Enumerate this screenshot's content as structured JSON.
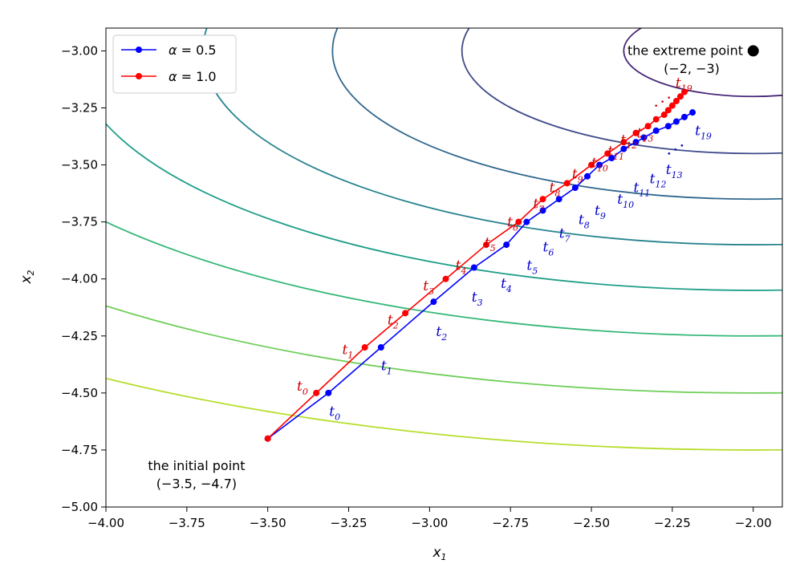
{
  "chart_data": {
    "type": "line",
    "title": "",
    "xlabel": "x",
    "xlabel_sub": "1",
    "ylabel": "x",
    "ylabel_sub": "2",
    "xlim": [
      -4.0,
      -1.91
    ],
    "ylim": [
      -5.0,
      -2.9
    ],
    "xticks": [
      -4.0,
      -3.75,
      -3.5,
      -3.25,
      -3.0,
      -2.75,
      -2.5,
      -2.25,
      -2.0
    ],
    "xtick_labels": [
      "−4.00",
      "−3.75",
      "−3.50",
      "−3.25",
      "−3.00",
      "−2.75",
      "−2.50",
      "−2.25",
      "−2.00"
    ],
    "yticks": [
      -3.0,
      -3.25,
      -3.5,
      -3.75,
      -4.0,
      -4.25,
      -4.5,
      -4.75,
      -5.0
    ],
    "ytick_labels": [
      "−3.00",
      "−3.25",
      "−3.50",
      "−3.75",
      "−4.00",
      "−4.25",
      "−4.50",
      "−4.75",
      "−5.00"
    ],
    "grid": false,
    "legend_position": "top-left",
    "contours": {
      "center": [
        -2.0,
        -3.0
      ],
      "x_radii": [
        0.4,
        0.9,
        1.3,
        1.7,
        2.1,
        2.5,
        3.0,
        3.5
      ],
      "ry_ratio": 0.5,
      "colors": [
        "#482878",
        "#3e4a89",
        "#31688e",
        "#26828e",
        "#1f9e89",
        "#35b779",
        "#6ece58",
        "#b5de2b"
      ]
    },
    "series": [
      {
        "name": "α = 0.5",
        "legend_symbol": "α",
        "legend_value": " = 0.5",
        "color": "#0000ff",
        "x": [
          -3.5,
          -3.3125,
          -3.15,
          -2.9875,
          -2.8625,
          -2.7625,
          -2.7,
          -2.65,
          -2.6,
          -2.55,
          -2.5125,
          -2.475,
          -2.4375,
          -2.4,
          -2.3625,
          -2.3375,
          -2.3,
          -2.2625,
          -2.2375,
          -2.2125,
          -2.1875
        ],
        "y": [
          -4.7,
          -4.5,
          -4.3,
          -4.1,
          -3.95,
          -3.85,
          -3.75,
          -3.7,
          -3.65,
          -3.6,
          -3.55,
          -3.5,
          -3.47,
          -3.43,
          -3.4,
          -3.38,
          -3.35,
          -3.33,
          -3.31,
          -3.29,
          -3.27
        ]
      },
      {
        "name": "α = 1.0",
        "legend_symbol": "α",
        "legend_value": " = 1.0",
        "color": "#ff0000",
        "x": [
          -3.5,
          -3.35,
          -3.2,
          -3.075,
          -2.95,
          -2.825,
          -2.725,
          -2.65,
          -2.575,
          -2.5,
          -2.45,
          -2.4,
          -2.3625,
          -2.325,
          -2.3,
          -2.275,
          -2.2625,
          -2.25,
          -2.2375,
          -2.225,
          -2.2125
        ],
        "y": [
          -4.7,
          -4.5,
          -4.3,
          -4.15,
          -4.0,
          -3.85,
          -3.75,
          -3.65,
          -3.58,
          -3.5,
          -3.45,
          -3.4,
          -3.36,
          -3.33,
          -3.3,
          -3.28,
          -3.26,
          -3.24,
          -3.22,
          -3.2,
          -3.18
        ]
      }
    ],
    "blue_labels": {
      "color": "#0000cc",
      "items": [
        {
          "sub": "0",
          "x": -3.31,
          "y": -4.6
        },
        {
          "sub": "1",
          "x": -3.15,
          "y": -4.4
        },
        {
          "sub": "2",
          "x": -2.98,
          "y": -4.25
        },
        {
          "sub": "3",
          "x": -2.87,
          "y": -4.1
        },
        {
          "sub": "4",
          "x": -2.78,
          "y": -4.04
        },
        {
          "sub": "5",
          "x": -2.7,
          "y": -3.96
        },
        {
          "sub": "6",
          "x": -2.65,
          "y": -3.88
        },
        {
          "sub": "7",
          "x": -2.6,
          "y": -3.82
        },
        {
          "sub": "8",
          "x": -2.54,
          "y": -3.76
        },
        {
          "sub": "9",
          "x": -2.49,
          "y": -3.72
        },
        {
          "sub": "10",
          "x": -2.42,
          "y": -3.67
        },
        {
          "sub": "11",
          "x": -2.37,
          "y": -3.62
        },
        {
          "sub": "12",
          "x": -2.32,
          "y": -3.58
        },
        {
          "sub": "13",
          "x": -2.27,
          "y": -3.54
        },
        {
          "sub": "19",
          "x": -2.18,
          "y": -3.37
        }
      ]
    },
    "red_labels": {
      "color": "#cc0000",
      "items": [
        {
          "sub": "0",
          "x": -3.41,
          "y": -4.49
        },
        {
          "sub": "1",
          "x": -3.27,
          "y": -4.33
        },
        {
          "sub": "2",
          "x": -3.13,
          "y": -4.2
        },
        {
          "sub": "3",
          "x": -3.02,
          "y": -4.05
        },
        {
          "sub": "4",
          "x": -2.92,
          "y": -3.96
        },
        {
          "sub": "5",
          "x": -2.83,
          "y": -3.86
        },
        {
          "sub": "6",
          "x": -2.76,
          "y": -3.77
        },
        {
          "sub": "7",
          "x": -2.68,
          "y": -3.69
        },
        {
          "sub": "8",
          "x": -2.63,
          "y": -3.62
        },
        {
          "sub": "9",
          "x": -2.56,
          "y": -3.56
        },
        {
          "sub": "10",
          "x": -2.5,
          "y": -3.51
        },
        {
          "sub": "11",
          "x": -2.45,
          "y": -3.46
        },
        {
          "sub": "12",
          "x": -2.41,
          "y": -3.41
        },
        {
          "sub": "13",
          "x": -2.36,
          "y": -3.38
        },
        {
          "sub": "19",
          "x": -2.24,
          "y": -3.16
        }
      ]
    },
    "ellipsis": {
      "red": {
        "x": -2.3,
        "y": -3.24
      },
      "blue": {
        "x": -2.26,
        "y": -3.45
      }
    },
    "annotations": {
      "extreme": {
        "line1": "the extreme point",
        "line2": "(−2, −3)",
        "point_x": -2.0,
        "point_y": -3.0,
        "text_x": -2.06,
        "text_y": -3.0,
        "text_cx": -2.21,
        "text2_y": -3.08
      },
      "initial": {
        "line1": "the initial point",
        "line2": "(−3.5, −4.7)",
        "text_cx": -3.72,
        "text_y": -4.82,
        "text2_y": -4.9
      }
    }
  }
}
